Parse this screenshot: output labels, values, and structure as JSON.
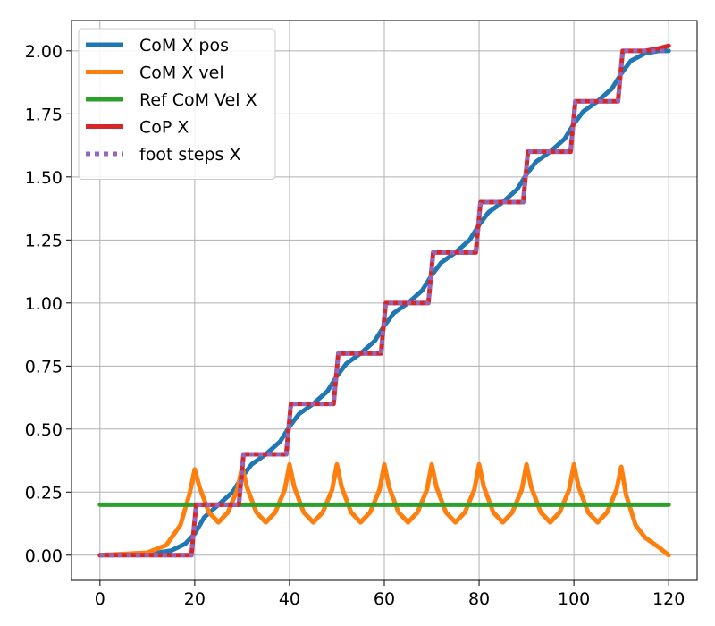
{
  "chart_data": {
    "type": "line",
    "title": "",
    "xlabel": "",
    "ylabel": "",
    "xlim": [
      -6,
      126
    ],
    "ylim": [
      -0.1,
      2.12
    ],
    "grid": true,
    "legend_position": "top-left",
    "x_ticks": [
      0,
      20,
      40,
      60,
      80,
      100,
      120
    ],
    "x_tick_labels": [
      "0",
      "20",
      "40",
      "60",
      "80",
      "100",
      "120"
    ],
    "y_ticks": [
      0.0,
      0.25,
      0.5,
      0.75,
      1.0,
      1.25,
      1.5,
      1.75,
      2.0
    ],
    "y_tick_labels": [
      "0.00",
      "0.25",
      "0.50",
      "0.75",
      "1.00",
      "1.25",
      "1.50",
      "1.75",
      "2.00"
    ],
    "series": [
      {
        "name": "CoM X pos",
        "color": "#1f77b4",
        "style": "solid",
        "x": [
          0,
          10,
          15,
          18,
          20,
          22,
          25,
          28,
          30,
          32,
          35,
          38,
          40,
          42,
          45,
          48,
          50,
          52,
          55,
          58,
          60,
          62,
          65,
          68,
          70,
          72,
          75,
          78,
          80,
          82,
          85,
          88,
          90,
          92,
          95,
          98,
          100,
          102,
          105,
          108,
          110,
          112,
          115,
          118,
          120
        ],
        "y": [
          0.0,
          0.004,
          0.018,
          0.045,
          0.085,
          0.15,
          0.2,
          0.25,
          0.31,
          0.36,
          0.4,
          0.45,
          0.51,
          0.56,
          0.6,
          0.65,
          0.71,
          0.76,
          0.8,
          0.85,
          0.91,
          0.96,
          1.0,
          1.05,
          1.11,
          1.16,
          1.2,
          1.25,
          1.31,
          1.36,
          1.4,
          1.45,
          1.51,
          1.56,
          1.6,
          1.65,
          1.71,
          1.76,
          1.8,
          1.85,
          1.91,
          1.96,
          1.99,
          2.0,
          2.0
        ]
      },
      {
        "name": "CoM X vel",
        "color": "#ff7f0e",
        "style": "solid",
        "x": [
          0,
          10,
          14,
          17,
          19,
          20,
          21,
          23,
          25,
          27,
          29,
          30,
          31,
          33,
          35,
          37,
          39,
          40,
          41,
          43,
          45,
          47,
          49,
          50,
          51,
          53,
          55,
          57,
          59,
          60,
          61,
          63,
          65,
          67,
          69,
          70,
          71,
          73,
          75,
          77,
          79,
          80,
          81,
          83,
          85,
          87,
          89,
          90,
          91,
          93,
          95,
          97,
          99,
          100,
          101,
          103,
          105,
          107,
          109,
          110,
          111,
          113,
          115,
          118,
          120
        ],
        "y": [
          0.0,
          0.01,
          0.04,
          0.12,
          0.25,
          0.34,
          0.27,
          0.17,
          0.13,
          0.17,
          0.26,
          0.35,
          0.27,
          0.17,
          0.13,
          0.17,
          0.26,
          0.36,
          0.27,
          0.17,
          0.13,
          0.17,
          0.26,
          0.36,
          0.27,
          0.17,
          0.13,
          0.17,
          0.26,
          0.36,
          0.27,
          0.17,
          0.13,
          0.17,
          0.26,
          0.36,
          0.27,
          0.17,
          0.13,
          0.17,
          0.26,
          0.36,
          0.27,
          0.17,
          0.13,
          0.17,
          0.26,
          0.36,
          0.27,
          0.17,
          0.13,
          0.17,
          0.26,
          0.36,
          0.27,
          0.17,
          0.13,
          0.17,
          0.26,
          0.35,
          0.24,
          0.12,
          0.07,
          0.03,
          0.0
        ]
      },
      {
        "name": "Ref CoM Vel X",
        "color": "#2ca02c",
        "style": "solid",
        "x": [
          0,
          120
        ],
        "y": [
          0.2,
          0.2
        ]
      },
      {
        "name": "CoP X",
        "color": "#d62728",
        "style": "solid",
        "x": [
          0,
          19.3,
          20.3,
          29.3,
          30.3,
          39.3,
          40.3,
          49.3,
          50.3,
          59.3,
          60.3,
          69.3,
          70.3,
          79.3,
          80.3,
          89.3,
          90.3,
          99.3,
          100.3,
          109.3,
          110.3,
          115,
          118,
          120
        ],
        "y": [
          0.0,
          0.0,
          0.2,
          0.2,
          0.4,
          0.4,
          0.6,
          0.6,
          0.8,
          0.8,
          1.0,
          1.0,
          1.2,
          1.2,
          1.4,
          1.4,
          1.6,
          1.6,
          1.8,
          1.8,
          2.0,
          2.0,
          2.01,
          2.02
        ]
      },
      {
        "name": "foot steps X",
        "color": "#9467bd",
        "style": "dotted",
        "x": [
          0,
          19.3,
          20.3,
          29.3,
          30.3,
          39.3,
          40.3,
          49.3,
          50.3,
          59.3,
          60.3,
          69.3,
          70.3,
          79.3,
          80.3,
          89.3,
          90.3,
          99.3,
          100.3,
          109.3,
          110.3,
          120
        ],
        "y": [
          0.0,
          0.0,
          0.2,
          0.2,
          0.4,
          0.4,
          0.6,
          0.6,
          0.8,
          0.8,
          1.0,
          1.0,
          1.2,
          1.2,
          1.4,
          1.4,
          1.6,
          1.6,
          1.8,
          1.8,
          2.0,
          2.0
        ]
      }
    ]
  }
}
